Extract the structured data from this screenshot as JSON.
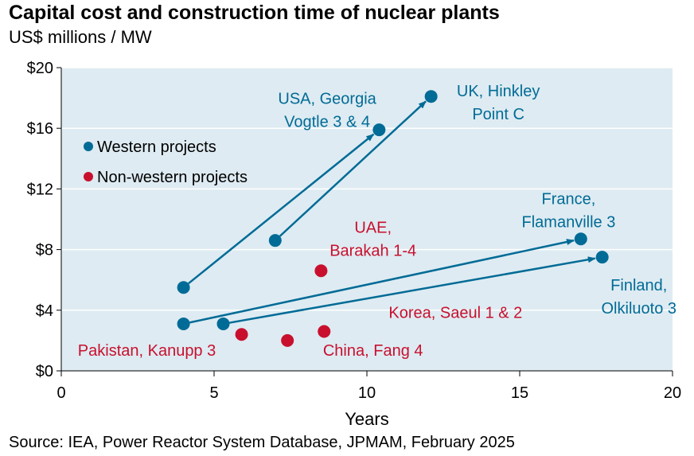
{
  "title": "Capital cost and construction time of nuclear plants",
  "subtitle": "US$ millions / MW",
  "source": "Source: IEA, Power Reactor System Database, JPMAM, February 2025",
  "colors": {
    "western": "#006B96",
    "nonwestern": "#C8102E",
    "plot_bg": "#DEEBF2",
    "grid": "#FFFFFF"
  },
  "chart_data": {
    "type": "scatter",
    "xlabel": "Years",
    "ylabel": "",
    "xlim": [
      0,
      20
    ],
    "ylim": [
      0,
      20
    ],
    "x_ticks": [
      0,
      5,
      10,
      15,
      20
    ],
    "x_tick_labels": [
      "0",
      "5",
      "10",
      "15",
      "20"
    ],
    "y_ticks": [
      0,
      4,
      8,
      12,
      16,
      20
    ],
    "y_tick_labels": [
      "$0",
      "$4",
      "$8",
      "$12",
      "$16",
      "$20"
    ],
    "grid": "horizontal",
    "legend": {
      "placement": "upper-left",
      "entries": [
        {
          "label": "Western projects",
          "series": "western"
        },
        {
          "label": "Non-western projects",
          "series": "nonwestern"
        }
      ]
    },
    "series": [
      {
        "name": "Western projects",
        "key": "western",
        "points": [
          {
            "x": 4.0,
            "y": 5.5
          },
          {
            "x": 10.4,
            "y": 15.9
          },
          {
            "x": 7.0,
            "y": 8.6
          },
          {
            "x": 12.1,
            "y": 18.1
          },
          {
            "x": 4.0,
            "y": 3.1
          },
          {
            "x": 17.0,
            "y": 8.7
          },
          {
            "x": 5.3,
            "y": 3.1
          },
          {
            "x": 17.7,
            "y": 7.5
          }
        ],
        "arrows": [
          {
            "from": [
              4.0,
              5.5
            ],
            "to": [
              10.4,
              15.9
            ]
          },
          {
            "from": [
              7.0,
              8.6
            ],
            "to": [
              12.1,
              18.1
            ]
          },
          {
            "from": [
              4.0,
              3.1
            ],
            "to": [
              17.0,
              8.7
            ]
          },
          {
            "from": [
              5.3,
              3.1
            ],
            "to": [
              17.7,
              7.5
            ]
          }
        ]
      },
      {
        "name": "Non-western projects",
        "key": "nonwestern",
        "points": [
          {
            "x": 5.9,
            "y": 2.4
          },
          {
            "x": 7.4,
            "y": 2.0
          },
          {
            "x": 8.6,
            "y": 2.6
          },
          {
            "x": 8.5,
            "y": 6.6
          }
        ]
      }
    ],
    "annotations": [
      {
        "key": "ann-usa-georgia",
        "series": "western",
        "lines": [
          "USA, Georgia",
          "Vogtle 3 & 4"
        ],
        "at": [
          8.7,
          17.6
        ]
      },
      {
        "key": "ann-uk-hinkley",
        "series": "western",
        "lines": [
          "UK, Hinkley",
          "Point C"
        ],
        "at": [
          14.3,
          18.1
        ]
      },
      {
        "key": "ann-france",
        "series": "western",
        "lines": [
          "France,",
          "Flamanville 3"
        ],
        "at": [
          16.6,
          11.0
        ]
      },
      {
        "key": "ann-finland",
        "series": "western",
        "lines": [
          "Finland,",
          "Olkiluoto 3"
        ],
        "at": [
          18.9,
          5.3
        ]
      },
      {
        "key": "ann-uae",
        "series": "nonwestern",
        "lines": [
          "UAE,",
          "Barakah 1-4"
        ],
        "at": [
          10.2,
          9.1
        ]
      },
      {
        "key": "ann-korea",
        "series": "nonwestern",
        "lines": [
          "Korea, Saeul 1 & 2"
        ],
        "at": [
          12.9,
          3.5
        ]
      },
      {
        "key": "ann-china",
        "series": "nonwestern",
        "lines": [
          "China, Fang 4"
        ],
        "at": [
          10.2,
          1.0
        ]
      },
      {
        "key": "ann-pakistan",
        "series": "nonwestern",
        "lines": [
          "Pakistan, Kanupp 3"
        ],
        "at": [
          2.8,
          1.0
        ]
      }
    ]
  }
}
